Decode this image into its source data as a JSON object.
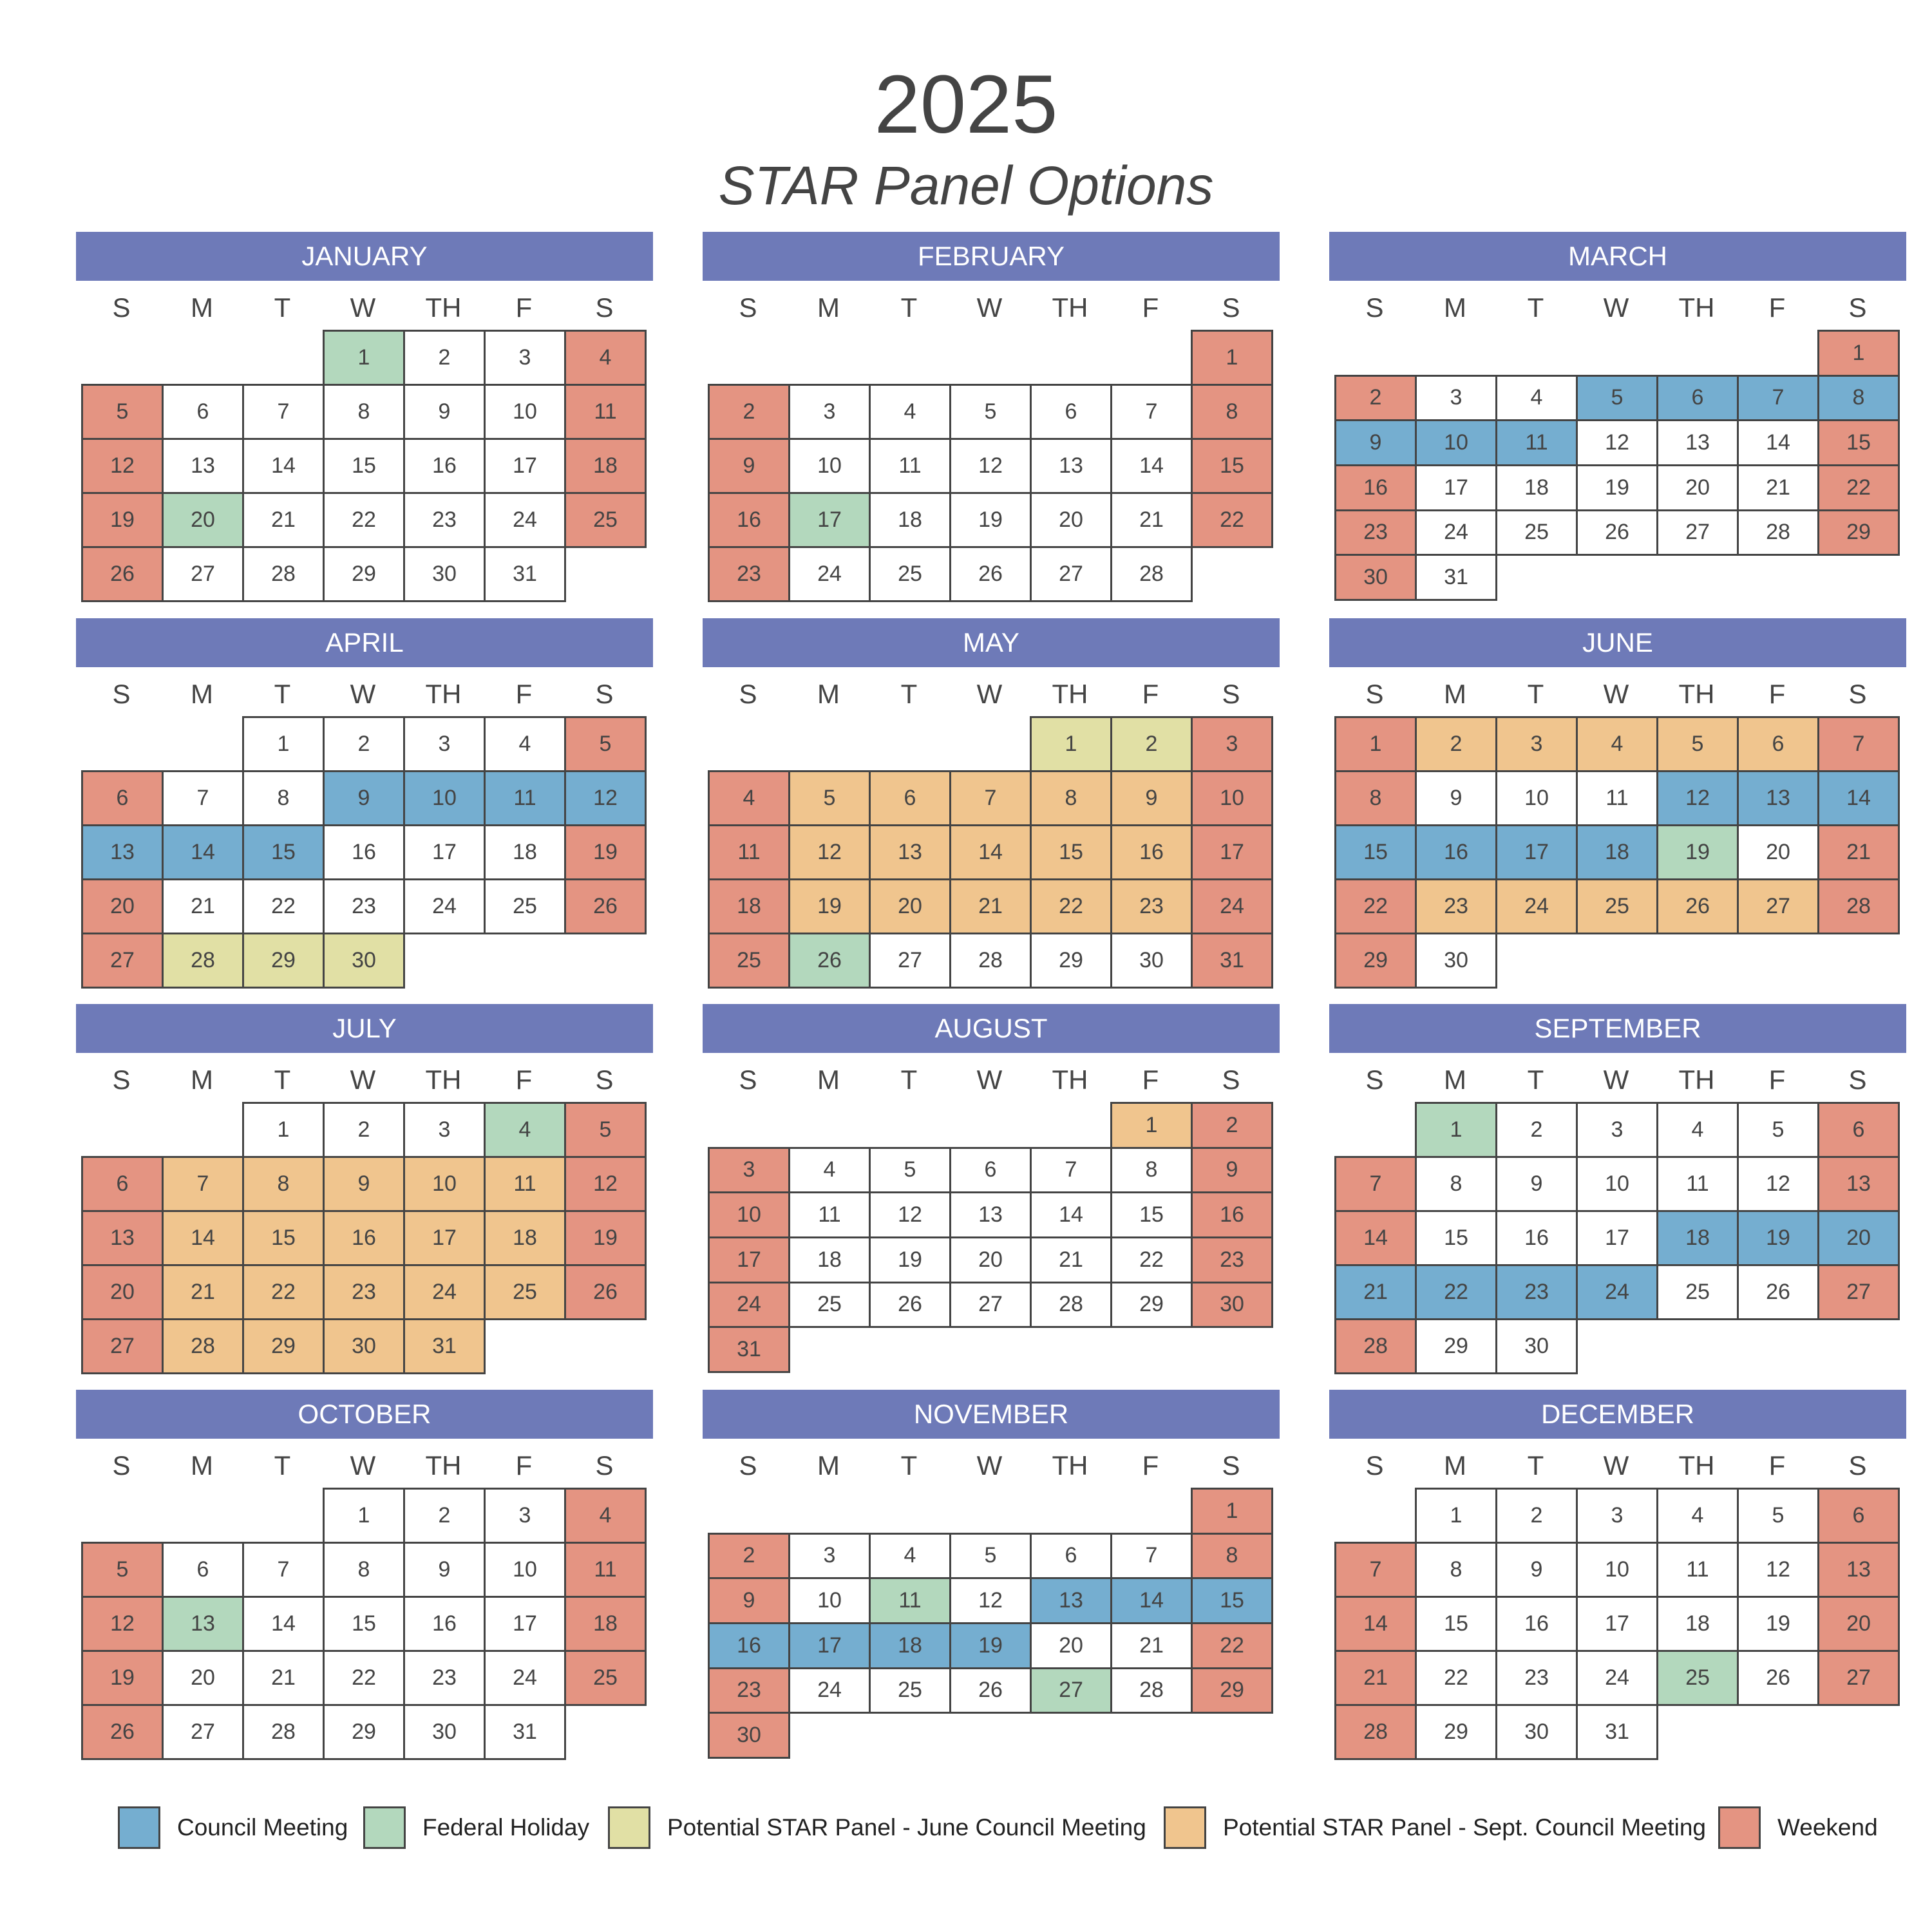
{
  "title": "2025",
  "subtitle": "STAR Panel Options",
  "weekdays": [
    "S",
    "M",
    "T",
    "W",
    "TH",
    "F",
    "S"
  ],
  "colors": {
    "C": "#75aed0",
    "H": "#b3d8bd",
    "J": "#e1e0a5",
    "S": "#f0c58e",
    "W": "#e49482",
    "N": "#ffffff"
  },
  "months": [
    {
      "name": "JANUARY",
      "start": 3,
      "days": 31,
      "marks": {
        "H": [
          1,
          20
        ],
        "W": [
          4,
          5,
          11,
          12,
          18,
          19,
          25,
          26
        ]
      }
    },
    {
      "name": "FEBRUARY",
      "start": 6,
      "days": 28,
      "marks": {
        "H": [
          17
        ],
        "W": [
          1,
          2,
          8,
          9,
          15,
          16,
          22,
          23
        ]
      }
    },
    {
      "name": "MARCH",
      "start": 6,
      "days": 31,
      "marks": {
        "C": [
          5,
          6,
          7,
          8,
          9,
          10,
          11
        ],
        "W": [
          1,
          2,
          15,
          16,
          22,
          23,
          29,
          30
        ]
      }
    },
    {
      "name": "APRIL",
      "start": 2,
      "days": 30,
      "marks": {
        "C": [
          9,
          10,
          11,
          12,
          13,
          14,
          15
        ],
        "J": [
          28,
          29,
          30
        ],
        "W": [
          5,
          6,
          19,
          20,
          26,
          27
        ]
      }
    },
    {
      "name": "MAY",
      "start": 4,
      "days": 31,
      "marks": {
        "J": [
          1,
          2
        ],
        "S": [
          5,
          6,
          7,
          8,
          9,
          12,
          13,
          14,
          15,
          16,
          19,
          20,
          21,
          22,
          23
        ],
        "H": [
          26
        ],
        "W": [
          3,
          4,
          10,
          11,
          17,
          18,
          24,
          25,
          31
        ]
      }
    },
    {
      "name": "JUNE",
      "start": 0,
      "days": 30,
      "marks": {
        "S": [
          2,
          3,
          4,
          5,
          6,
          23,
          24,
          25,
          26,
          27
        ],
        "C": [
          12,
          13,
          14,
          15,
          16,
          17,
          18
        ],
        "H": [
          19
        ],
        "W": [
          1,
          7,
          8,
          21,
          22,
          28,
          29
        ]
      }
    },
    {
      "name": "JULY",
      "start": 2,
      "days": 31,
      "marks": {
        "H": [
          4
        ],
        "S": [
          7,
          8,
          9,
          10,
          11,
          14,
          15,
          16,
          17,
          18,
          21,
          22,
          23,
          24,
          25,
          28,
          29,
          30,
          31
        ],
        "W": [
          5,
          6,
          12,
          13,
          19,
          20,
          26,
          27
        ]
      }
    },
    {
      "name": "AUGUST",
      "start": 5,
      "days": 31,
      "marks": {
        "S": [
          1
        ],
        "W": [
          2,
          3,
          9,
          10,
          16,
          17,
          23,
          24,
          30,
          31
        ]
      }
    },
    {
      "name": "SEPTEMBER",
      "start": 1,
      "days": 30,
      "marks": {
        "H": [
          1
        ],
        "C": [
          18,
          19,
          20,
          21,
          22,
          23,
          24
        ],
        "W": [
          6,
          7,
          13,
          14,
          27,
          28
        ]
      }
    },
    {
      "name": "OCTOBER",
      "start": 3,
      "days": 31,
      "marks": {
        "H": [
          13
        ],
        "W": [
          4,
          5,
          11,
          12,
          18,
          19,
          25,
          26
        ]
      }
    },
    {
      "name": "NOVEMBER",
      "start": 6,
      "days": 30,
      "marks": {
        "H": [
          11,
          27
        ],
        "C": [
          13,
          14,
          15,
          16,
          17,
          18,
          19
        ],
        "W": [
          1,
          2,
          8,
          9,
          22,
          23,
          29,
          30
        ]
      }
    },
    {
      "name": "DECEMBER",
      "start": 1,
      "days": 31,
      "marks": {
        "H": [
          25
        ],
        "W": [
          6,
          7,
          13,
          14,
          20,
          21,
          27,
          28
        ]
      }
    }
  ],
  "legend": [
    {
      "label": "Council Meeting",
      "color": "#75aed0",
      "icon": "council-meeting-swatch"
    },
    {
      "label": "Federal Holiday",
      "color": "#b3d8bd",
      "icon": "federal-holiday-swatch"
    },
    {
      "label": "Potential STAR Panel - June Council Meeting",
      "color": "#e1e0a5",
      "icon": "june-panel-swatch"
    },
    {
      "label": "Potential STAR Panel - Sept. Council Meeting",
      "color": "#f0c58e",
      "icon": "sept-panel-swatch"
    },
    {
      "label": "Weekend",
      "color": "#e49482",
      "icon": "weekend-swatch"
    }
  ]
}
